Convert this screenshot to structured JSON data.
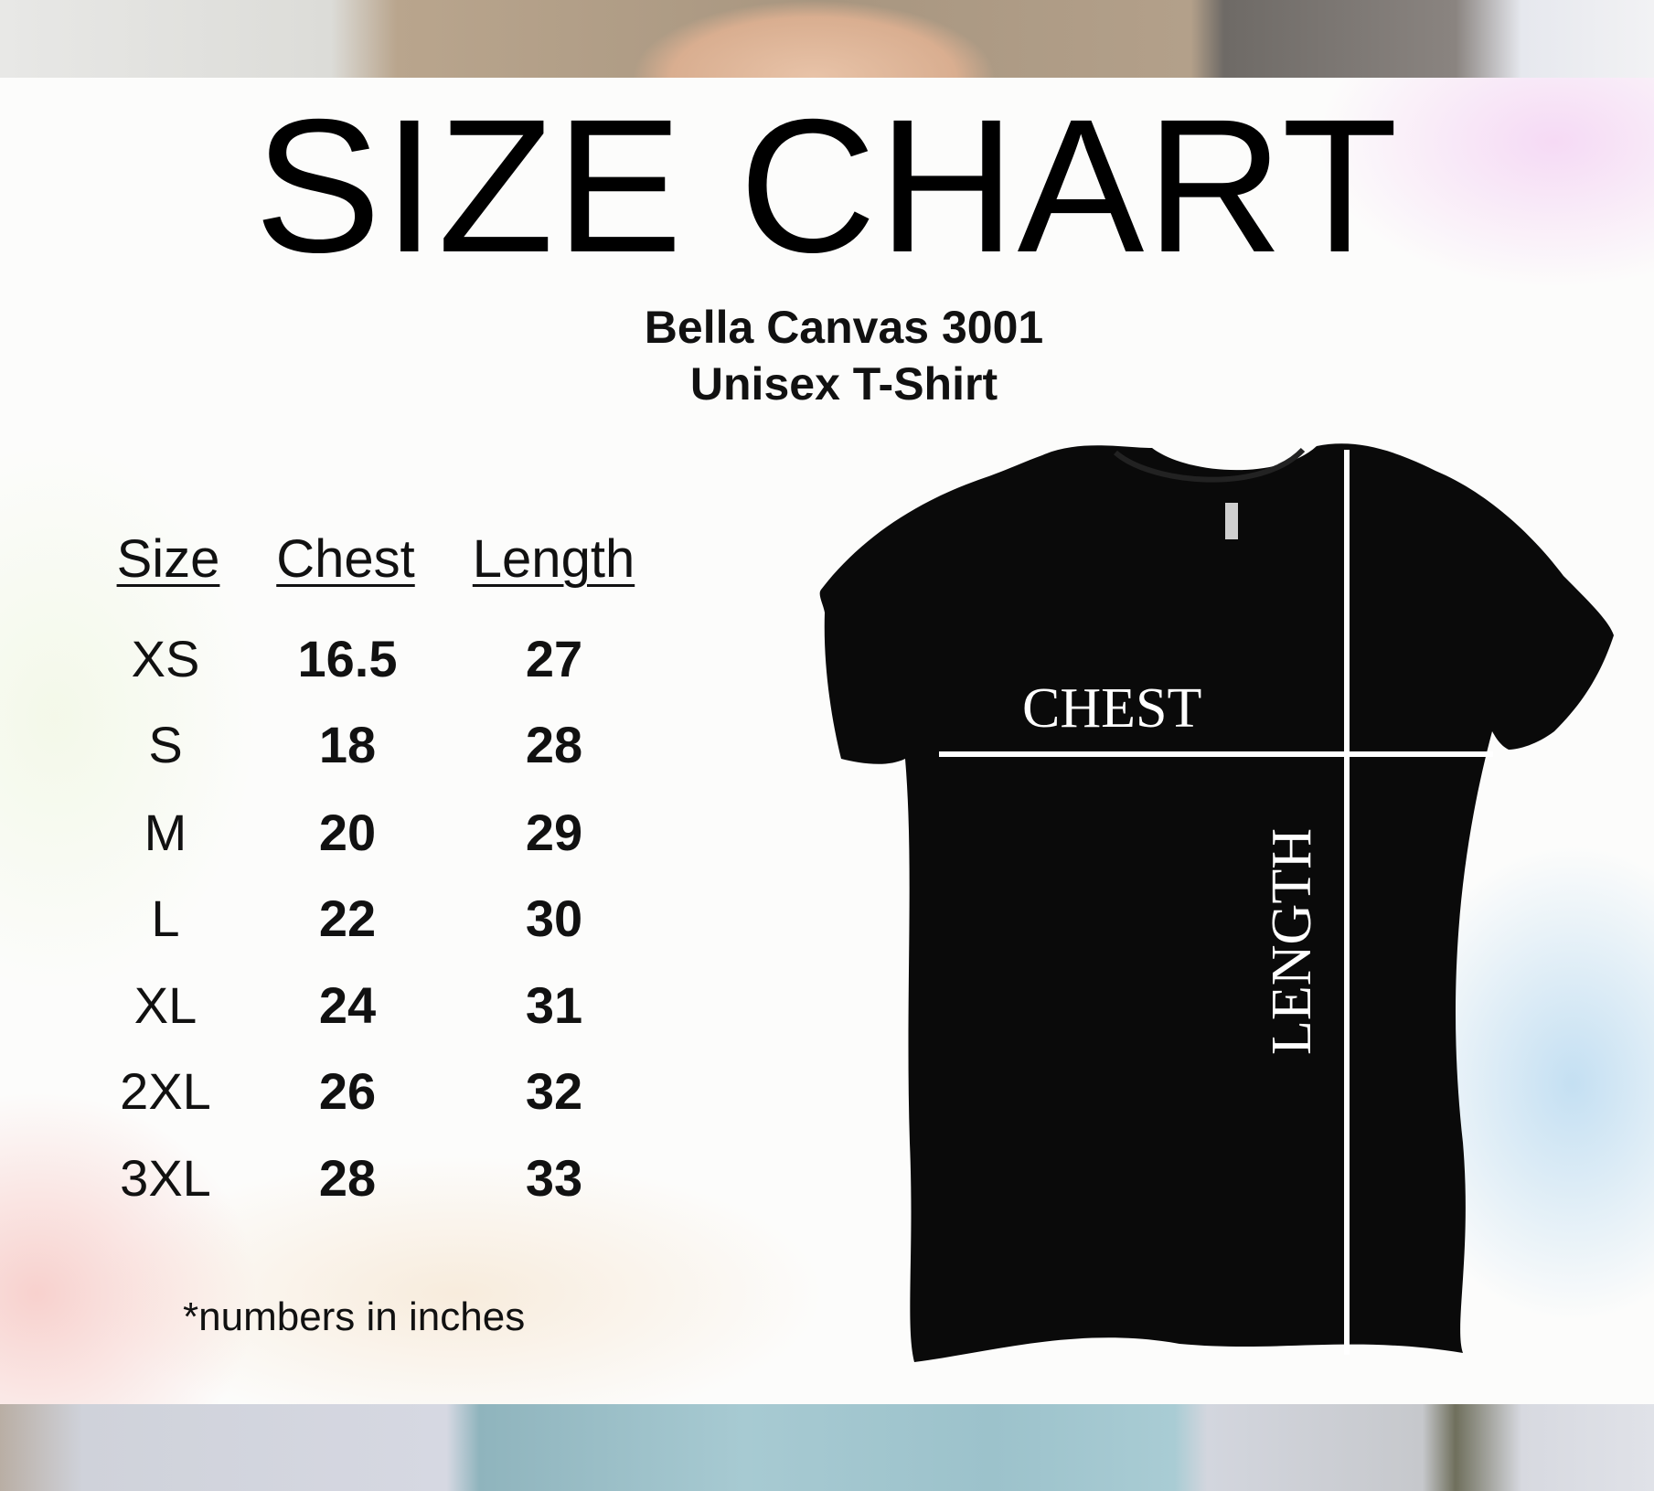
{
  "title": "SIZE CHART",
  "subtitle": [
    "Bella Canvas 3001",
    "Unisex T-Shirt"
  ],
  "table": {
    "headers": [
      "Size",
      "Chest",
      "Length"
    ],
    "rows": [
      [
        "XS",
        "16.5",
        "27"
      ],
      [
        "S",
        "18",
        "28"
      ],
      [
        "M",
        "20",
        "29"
      ],
      [
        "L",
        "22",
        "30"
      ],
      [
        "XL",
        "24",
        "31"
      ],
      [
        "2XL",
        "26",
        "32"
      ],
      [
        "3XL",
        "28",
        "33"
      ]
    ]
  },
  "note": "*numbers in inches",
  "diagram": {
    "chest_label": "CHEST",
    "length_label": "LENGTH",
    "shirt_color": "#0a0a0a"
  }
}
